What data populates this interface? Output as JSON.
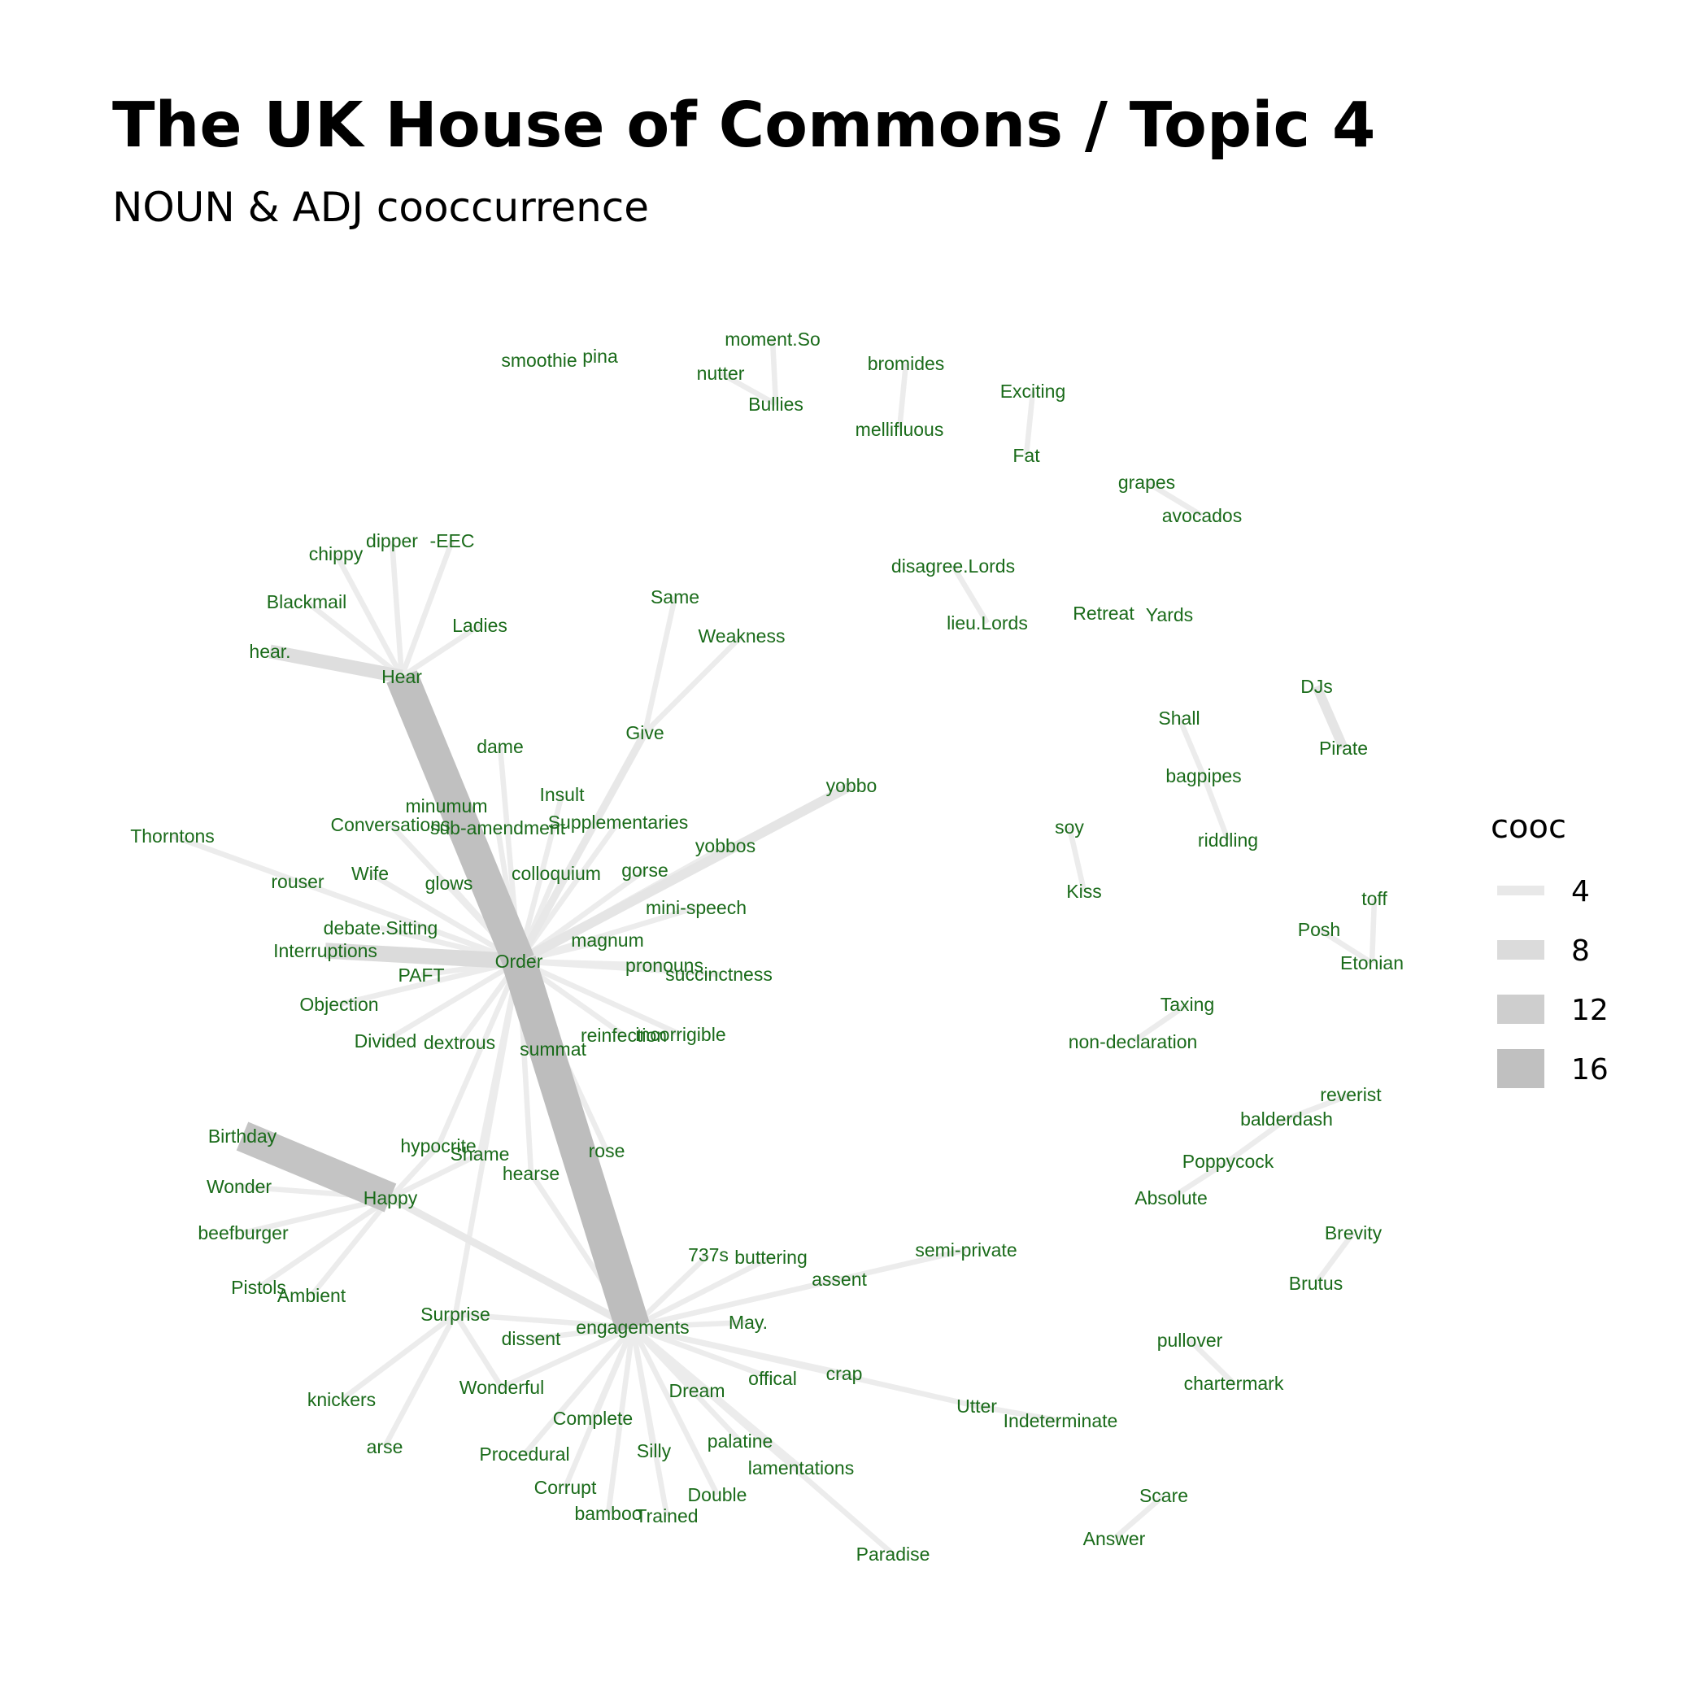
{
  "title": "The UK House of Commons / Topic 4",
  "subtitle": "NOUN & ADJ cooccurrence",
  "colors": {
    "label": "#1a6b1a",
    "edge_light": "#efefef",
    "edge_dark": "#bdbdbd"
  },
  "legend": {
    "title": "cooc",
    "items": [
      {
        "label": "4",
        "value": 4
      },
      {
        "label": "8",
        "value": 8
      },
      {
        "label": "12",
        "value": 12
      },
      {
        "label": "16",
        "value": 16
      }
    ]
  },
  "nodes": [
    "smoothie",
    "pina",
    "moment.So",
    "nutter",
    "Bullies",
    "bromides",
    "mellifluous",
    "Exciting",
    "Fat",
    "grapes",
    "avocados",
    "chippy",
    "dipper",
    "-EEC",
    "Blackmail",
    "Ladies",
    "hear.",
    "Hear",
    "Same",
    "Weakness",
    "disagree.Lords",
    "lieu.Lords",
    "Retreat",
    "Yards",
    "DJs",
    "Pirate",
    "Shall",
    "bagpipes",
    "riddling",
    "dame",
    "Give",
    "Insult",
    "yobbo",
    "minumum",
    "Conversations",
    "sub-amendment",
    "Supplementaries",
    "Thorntons",
    "yobbos",
    "soy",
    "Kiss",
    "rouser",
    "Wife",
    "glows",
    "colloquium",
    "gorse",
    "mini-speech",
    "toff",
    "Posh",
    "Etonian",
    "debate.Sitting",
    "magnum",
    "Interruptions",
    "Order",
    "pronouns",
    "succinctness",
    "PAFT",
    "Objection",
    "Taxing",
    "non-declaration",
    "Divided",
    "dextrous",
    "summat",
    "reinfection",
    "incorrigible",
    "reverist",
    "balderdash",
    "Birthday",
    "hypocrite",
    "Shame",
    "rose",
    "Poppycock",
    "Wonder",
    "hearse",
    "Happy",
    "Absolute",
    "beefburger",
    "Brevity",
    "737s",
    "buttering",
    "semi-private",
    "assent",
    "Pistols",
    "Ambient",
    "Brutus",
    "Surprise",
    "engagements",
    "May.",
    "dissent",
    "pullover",
    "crap",
    "offical",
    "chartermark",
    "Wonderful",
    "Dream",
    "Utter",
    "knickers",
    "Indeterminate",
    "Complete",
    "palatine",
    "arse",
    "Procedural",
    "Silly",
    "lamentations",
    "Scare",
    "Corrupt",
    "Double",
    "bamboo",
    "Trained",
    "Answer",
    "Paradise"
  ],
  "edges": [
    {
      "from": "Hear",
      "to": "Order",
      "cooc": 16
    },
    {
      "from": "Order",
      "to": "engagements",
      "cooc": 17
    },
    {
      "from": "Birthday",
      "to": "Happy",
      "cooc": 15
    },
    {
      "from": "hear.",
      "to": "Hear",
      "cooc": 7
    },
    {
      "from": "Interruptions",
      "to": "Order",
      "cooc": 8
    },
    {
      "from": "yobbo",
      "to": "Order",
      "cooc": 5
    },
    {
      "from": "DJs",
      "to": "Pirate",
      "cooc": 5
    },
    {
      "from": "Give",
      "to": "Order",
      "cooc": 4
    },
    {
      "from": "Happy",
      "to": "engagements",
      "cooc": 4
    },
    {
      "from": "chippy",
      "to": "Hear",
      "cooc": 3
    },
    {
      "from": "dipper",
      "to": "Hear",
      "cooc": 3
    },
    {
      "from": "-EEC",
      "to": "Hear",
      "cooc": 3
    },
    {
      "from": "Blackmail",
      "to": "Hear",
      "cooc": 3
    },
    {
      "from": "Ladies",
      "to": "Hear",
      "cooc": 3
    },
    {
      "from": "Same",
      "to": "Give",
      "cooc": 3
    },
    {
      "from": "Weakness",
      "to": "Give",
      "cooc": 3
    },
    {
      "from": "nutter",
      "to": "Bullies",
      "cooc": 3
    },
    {
      "from": "moment.So",
      "to": "Bullies",
      "cooc": 3
    },
    {
      "from": "bromides",
      "to": "mellifluous",
      "cooc": 3
    },
    {
      "from": "Exciting",
      "to": "Fat",
      "cooc": 3
    },
    {
      "from": "grapes",
      "to": "avocados",
      "cooc": 3
    },
    {
      "from": "disagree.Lords",
      "to": "lieu.Lords",
      "cooc": 3
    },
    {
      "from": "Shall",
      "to": "bagpipes",
      "cooc": 3
    },
    {
      "from": "bagpipes",
      "to": "riddling",
      "cooc": 3
    },
    {
      "from": "soy",
      "to": "Kiss",
      "cooc": 3
    },
    {
      "from": "toff",
      "to": "Etonian",
      "cooc": 3
    },
    {
      "from": "Posh",
      "to": "Etonian",
      "cooc": 3
    },
    {
      "from": "Taxing",
      "to": "non-declaration",
      "cooc": 3
    },
    {
      "from": "reverist",
      "to": "balderdash",
      "cooc": 3
    },
    {
      "from": "balderdash",
      "to": "Poppycock",
      "cooc": 3
    },
    {
      "from": "Poppycock",
      "to": "Absolute",
      "cooc": 3
    },
    {
      "from": "Brevity",
      "to": "Brutus",
      "cooc": 3
    },
    {
      "from": "pullover",
      "to": "chartermark",
      "cooc": 3
    },
    {
      "from": "Scare",
      "to": "Answer",
      "cooc": 3
    },
    {
      "from": "Thorntons",
      "to": "Order",
      "cooc": 3
    },
    {
      "from": "dame",
      "to": "Order",
      "cooc": 3
    },
    {
      "from": "Insult",
      "to": "Order",
      "cooc": 3
    },
    {
      "from": "minumum",
      "to": "Order",
      "cooc": 3
    },
    {
      "from": "Conversations",
      "to": "Order",
      "cooc": 3
    },
    {
      "from": "sub-amendment",
      "to": "Order",
      "cooc": 3
    },
    {
      "from": "Supplementaries",
      "to": "Order",
      "cooc": 3
    },
    {
      "from": "yobbos",
      "to": "Order",
      "cooc": 3
    },
    {
      "from": "rouser",
      "to": "Order",
      "cooc": 3
    },
    {
      "from": "Wife",
      "to": "Order",
      "cooc": 3
    },
    {
      "from": "glows",
      "to": "Order",
      "cooc": 3
    },
    {
      "from": "colloquium",
      "to": "Order",
      "cooc": 3
    },
    {
      "from": "gorse",
      "to": "Order",
      "cooc": 3
    },
    {
      "from": "mini-speech",
      "to": "Order",
      "cooc": 3
    },
    {
      "from": "debate.Sitting",
      "to": "Order",
      "cooc": 3
    },
    {
      "from": "magnum",
      "to": "Order",
      "cooc": 3
    },
    {
      "from": "pronouns",
      "to": "Order",
      "cooc": 3
    },
    {
      "from": "succinctness",
      "to": "Order",
      "cooc": 3
    },
    {
      "from": "PAFT",
      "to": "Order",
      "cooc": 3
    },
    {
      "from": "Objection",
      "to": "Order",
      "cooc": 3
    },
    {
      "from": "Divided",
      "to": "Order",
      "cooc": 3
    },
    {
      "from": "dextrous",
      "to": "Order",
      "cooc": 3
    },
    {
      "from": "summat",
      "to": "Order",
      "cooc": 3
    },
    {
      "from": "reinfection",
      "to": "Order",
      "cooc": 3
    },
    {
      "from": "incorrigible",
      "to": "Order",
      "cooc": 3
    },
    {
      "from": "hypocrite",
      "to": "Order",
      "cooc": 3
    },
    {
      "from": "Shame",
      "to": "Order",
      "cooc": 3
    },
    {
      "from": "hearse",
      "to": "Order",
      "cooc": 3
    },
    {
      "from": "rose",
      "to": "Order",
      "cooc": 3
    },
    {
      "from": "Surprise",
      "to": "Order",
      "cooc": 3
    },
    {
      "from": "Wonder",
      "to": "Happy",
      "cooc": 3
    },
    {
      "from": "beefburger",
      "to": "Happy",
      "cooc": 3
    },
    {
      "from": "Pistols",
      "to": "Happy",
      "cooc": 3
    },
    {
      "from": "Ambient",
      "to": "Happy",
      "cooc": 3
    },
    {
      "from": "hypocrite",
      "to": "Happy",
      "cooc": 3
    },
    {
      "from": "Shame",
      "to": "Happy",
      "cooc": 3
    },
    {
      "from": "737s",
      "to": "engagements",
      "cooc": 3
    },
    {
      "from": "buttering",
      "to": "engagements",
      "cooc": 3
    },
    {
      "from": "semi-private",
      "to": "engagements",
      "cooc": 3
    },
    {
      "from": "assent",
      "to": "engagements",
      "cooc": 3
    },
    {
      "from": "May.",
      "to": "engagements",
      "cooc": 3
    },
    {
      "from": "dissent",
      "to": "engagements",
      "cooc": 3
    },
    {
      "from": "crap",
      "to": "engagements",
      "cooc": 3
    },
    {
      "from": "offical",
      "to": "engagements",
      "cooc": 3
    },
    {
      "from": "Wonderful",
      "to": "engagements",
      "cooc": 3
    },
    {
      "from": "Dream",
      "to": "engagements",
      "cooc": 3
    },
    {
      "from": "Utter",
      "to": "engagements",
      "cooc": 3
    },
    {
      "from": "Complete",
      "to": "engagements",
      "cooc": 3
    },
    {
      "from": "palatine",
      "to": "engagements",
      "cooc": 3
    },
    {
      "from": "Procedural",
      "to": "engagements",
      "cooc": 3
    },
    {
      "from": "Silly",
      "to": "engagements",
      "cooc": 3
    },
    {
      "from": "lamentations",
      "to": "engagements",
      "cooc": 3
    },
    {
      "from": "Corrupt",
      "to": "engagements",
      "cooc": 3
    },
    {
      "from": "Double",
      "to": "engagements",
      "cooc": 3
    },
    {
      "from": "bamboo",
      "to": "engagements",
      "cooc": 3
    },
    {
      "from": "Trained",
      "to": "engagements",
      "cooc": 3
    },
    {
      "from": "Paradise",
      "to": "engagements",
      "cooc": 3
    },
    {
      "from": "Surprise",
      "to": "engagements",
      "cooc": 3
    },
    {
      "from": "hearse",
      "to": "engagements",
      "cooc": 3
    },
    {
      "from": "Surprise",
      "to": "knickers",
      "cooc": 3
    },
    {
      "from": "Surprise",
      "to": "arse",
      "cooc": 3
    },
    {
      "from": "Surprise",
      "to": "Wonderful",
      "cooc": 3
    },
    {
      "from": "Utter",
      "to": "Indeterminate",
      "cooc": 3
    }
  ]
}
